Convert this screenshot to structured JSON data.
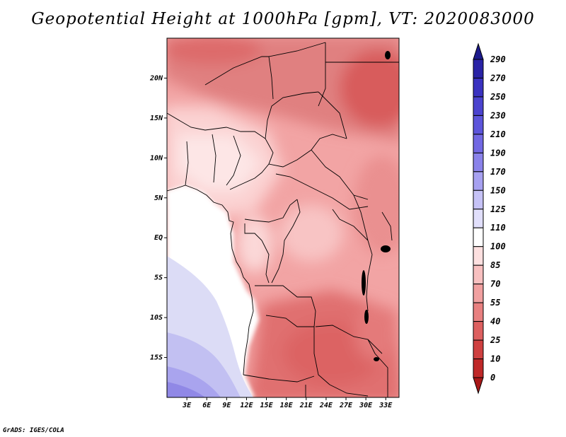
{
  "title": "Geopotential Height at 1000hPa [gpm], VT: 2020083000",
  "credit": "GrADS: IGES/COLA",
  "map": {
    "lon_range": [
      0,
      35
    ],
    "lat_range": [
      -20,
      25
    ],
    "x_ticks": [
      "3E",
      "6E",
      "9E",
      "12E",
      "15E",
      "18E",
      "21E",
      "24E",
      "27E",
      "30E",
      "33E"
    ],
    "y_ticks": [
      "20N",
      "15N",
      "10N",
      "5N",
      "EQ",
      "5S",
      "10S",
      "15S"
    ]
  },
  "colorbar": {
    "labels": [
      "290",
      "270",
      "250",
      "230",
      "210",
      "190",
      "170",
      "150",
      "125",
      "110",
      "100",
      "85",
      "70",
      "55",
      "40",
      "25",
      "10",
      "0"
    ],
    "colors": [
      "#1c1a8c",
      "#2a23a6",
      "#3a32c0",
      "#4b43cf",
      "#5d55db",
      "#7268e3",
      "#8a82ea",
      "#a7a1f1",
      "#c6c2f6",
      "#e1dffb",
      "#ffffff",
      "#fde0e0",
      "#f8c0c0",
      "#f1a0a0",
      "#e88080",
      "#dd6060",
      "#cf4040",
      "#bf2828",
      "#a81818"
    ]
  }
}
